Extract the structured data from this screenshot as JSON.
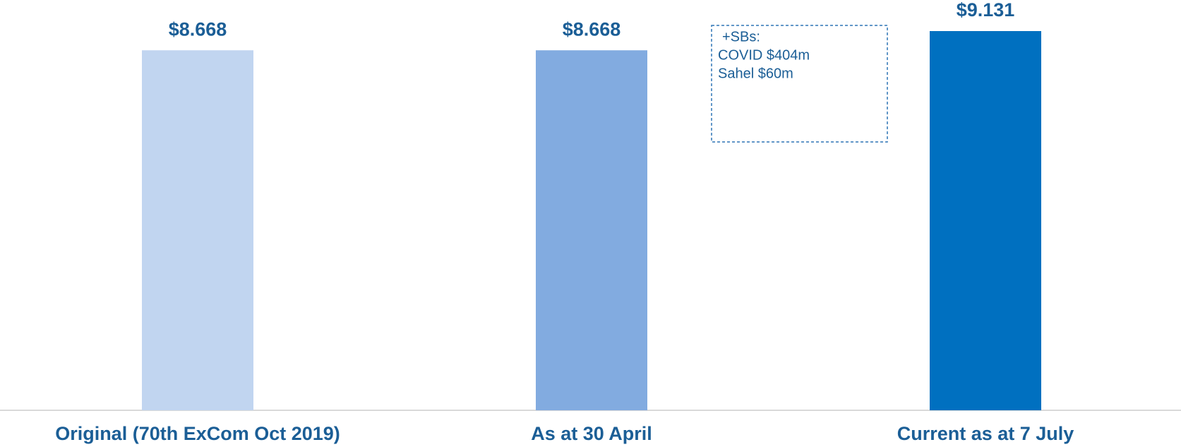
{
  "chart_data": {
    "type": "bar",
    "categories": [
      "Original (70th ExCom Oct 2019)",
      "As at 30 April",
      "Current as at 7 July"
    ],
    "values": [
      8.668,
      8.668,
      9.131
    ],
    "value_labels": [
      "$8.668",
      "$8.668",
      "$9.131"
    ],
    "colors": [
      "#c1d5f0",
      "#82abe0",
      "#0070c0"
    ],
    "annotation": [
      "+SBs:",
      "COVID $404m",
      "Sahel $60m"
    ]
  }
}
